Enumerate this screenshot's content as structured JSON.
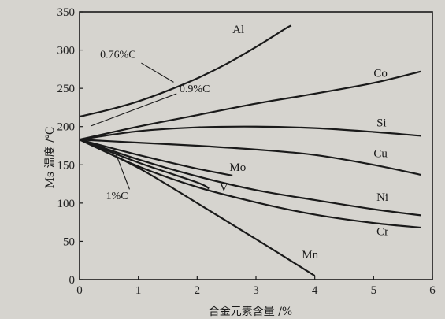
{
  "chart_data": {
    "type": "line",
    "xlabel": "合金元素含量 /%",
    "ylabel": "Ms 温度 /℃",
    "xlim": [
      0,
      6
    ],
    "ylim": [
      0,
      350
    ],
    "xticks": [
      0,
      1,
      2,
      3,
      4,
      5,
      6
    ],
    "yticks": [
      0,
      50,
      100,
      150,
      200,
      250,
      300,
      350
    ],
    "grid": false,
    "legend": "none",
    "series": [
      {
        "name": "Al",
        "x": [
          0,
          0.5,
          1,
          1.5,
          2,
          2.5,
          3,
          3.5,
          3.6
        ],
        "y": [
          213,
          222,
          233,
          247,
          263,
          282,
          304,
          328,
          332
        ]
      },
      {
        "name": "Co",
        "x": [
          0,
          1,
          2,
          3,
          4,
          5,
          5.8
        ],
        "y": [
          183,
          200,
          215,
          230,
          243,
          257,
          272
        ]
      },
      {
        "name": "Si",
        "x": [
          0,
          1,
          2,
          3,
          4,
          5,
          5.8
        ],
        "y": [
          183,
          194,
          199,
          200,
          198,
          193,
          188
        ]
      },
      {
        "name": "Cu",
        "x": [
          0,
          1,
          2,
          3,
          4,
          5,
          5.8
        ],
        "y": [
          183,
          179,
          175,
          170,
          163,
          150,
          137
        ]
      },
      {
        "name": "Ni",
        "x": [
          0,
          1,
          2,
          3,
          4,
          5,
          5.8
        ],
        "y": [
          183,
          157,
          135,
          117,
          104,
          92,
          84
        ]
      },
      {
        "name": "Cr",
        "x": [
          0,
          1,
          2,
          3,
          4,
          5,
          5.8
        ],
        "y": [
          183,
          148,
          121,
          101,
          85,
          74,
          68
        ]
      },
      {
        "name": "Mo",
        "x": [
          0,
          1,
          2,
          2.6
        ],
        "y": [
          183,
          163,
          145,
          136
        ]
      },
      {
        "name": "V",
        "x": [
          0,
          1,
          2,
          2.2
        ],
        "y": [
          183,
          153,
          127,
          119
        ]
      },
      {
        "name": "Mn",
        "x": [
          0,
          1,
          2,
          3,
          4
        ],
        "y": [
          183,
          146,
          100,
          53,
          5
        ]
      }
    ],
    "annotations": [
      {
        "text": "0.76%C",
        "x": 0.35,
        "y": 290
      },
      {
        "text": "0.9%C",
        "x": 1.7,
        "y": 245
      },
      {
        "text": "1%C",
        "x": 0.45,
        "y": 105
      }
    ]
  },
  "colors": {
    "line": "#1a1a1a",
    "background": "#d6d4cf"
  }
}
